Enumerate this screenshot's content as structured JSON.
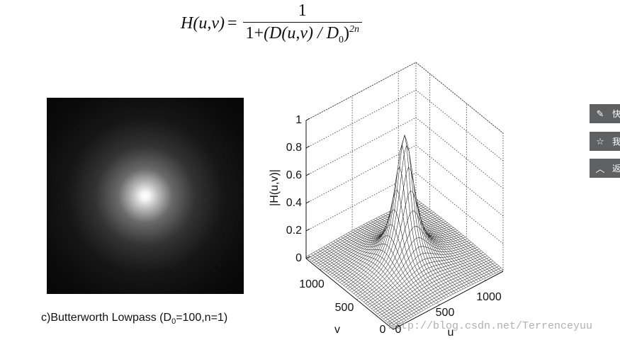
{
  "formula": {
    "lhs": "H(u,v)",
    "eq": "=",
    "numerator": "1",
    "den_prefix": "1+",
    "den_body": "(D(u,v) / D",
    "den_sub": "0",
    "den_close": ")",
    "den_exp": "2n"
  },
  "caption": {
    "prefix": "c)Butterworth Lowpass (D",
    "sub": "0",
    "suffix": "=100,n=1)"
  },
  "plot": {
    "zlabel": "|H(u,v)|",
    "zticks": [
      0,
      0.2,
      0.4,
      0.6,
      0.8,
      1
    ],
    "vlabel": "v",
    "vticks": [
      0,
      500,
      1000
    ],
    "ulabel": "u",
    "uticks": [
      0,
      500,
      1000
    ]
  },
  "sidebar": [
    "快",
    "我",
    "返"
  ],
  "watermark": "http://blog.csdn.net/Terrenceyuu"
}
